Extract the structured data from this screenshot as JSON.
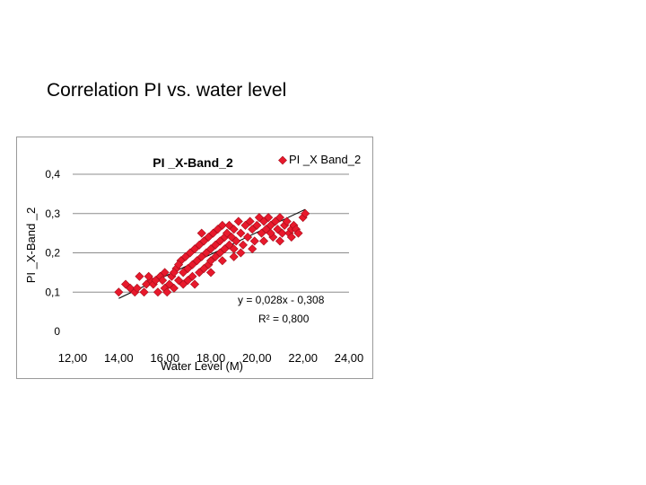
{
  "slide": {
    "title": "Correlation PI vs. water level"
  },
  "chart_data": {
    "type": "scatter",
    "title": "PI _X-Band_2",
    "xlabel": "Water Level (M)",
    "ylabel": "PI _X-Band _2",
    "xlim": [
      12,
      24
    ],
    "ylim": [
      0,
      0.4
    ],
    "x_ticks": [
      "12,00",
      "14,00",
      "16,00",
      "18,00",
      "20,00",
      "22,00",
      "24,00"
    ],
    "y_ticks": [
      "0",
      "0,1",
      "0,2",
      "0,3",
      "0,4"
    ],
    "legend": {
      "position": "top-right",
      "entry": "PI _X Band_2"
    },
    "grid": "horizontal",
    "colors": {
      "points": "#e8192c",
      "point_edge": "#a50e1c",
      "trend": "#000000",
      "axis": "#8c8c8c"
    },
    "trendline": {
      "slope": 0.028,
      "intercept": -0.308,
      "equation": "y = 0,028x - 0,308",
      "r2": "R² = 0,800"
    },
    "series": [
      {
        "name": "PI _X Band_2",
        "points": [
          [
            14.0,
            0.1
          ],
          [
            14.5,
            0.11
          ],
          [
            14.7,
            0.1
          ],
          [
            14.9,
            0.14
          ],
          [
            15.1,
            0.1
          ],
          [
            15.2,
            0.12
          ],
          [
            15.4,
            0.13
          ],
          [
            15.5,
            0.12
          ],
          [
            15.7,
            0.1
          ],
          [
            15.8,
            0.14
          ],
          [
            15.9,
            0.13
          ],
          [
            16.0,
            0.11
          ],
          [
            16.0,
            0.15
          ],
          [
            16.2,
            0.12
          ],
          [
            16.3,
            0.14
          ],
          [
            16.4,
            0.11
          ],
          [
            16.5,
            0.16
          ],
          [
            16.6,
            0.13
          ],
          [
            16.7,
            0.18
          ],
          [
            16.8,
            0.15
          ],
          [
            16.8,
            0.12
          ],
          [
            16.9,
            0.19
          ],
          [
            17.0,
            0.16
          ],
          [
            17.0,
            0.13
          ],
          [
            17.1,
            0.2
          ],
          [
            17.2,
            0.17
          ],
          [
            17.2,
            0.14
          ],
          [
            17.3,
            0.21
          ],
          [
            17.4,
            0.18
          ],
          [
            17.5,
            0.15
          ],
          [
            17.5,
            0.22
          ],
          [
            17.6,
            0.19
          ],
          [
            17.7,
            0.16
          ],
          [
            17.7,
            0.23
          ],
          [
            17.8,
            0.2
          ],
          [
            17.9,
            0.17
          ],
          [
            17.9,
            0.24
          ],
          [
            18.0,
            0.21
          ],
          [
            18.0,
            0.18
          ],
          [
            18.1,
            0.25
          ],
          [
            18.2,
            0.22
          ],
          [
            18.2,
            0.19
          ],
          [
            18.3,
            0.26
          ],
          [
            18.4,
            0.23
          ],
          [
            18.4,
            0.2
          ],
          [
            18.5,
            0.27
          ],
          [
            18.6,
            0.24
          ],
          [
            18.6,
            0.21
          ],
          [
            18.7,
            0.25
          ],
          [
            18.8,
            0.22
          ],
          [
            18.8,
            0.27
          ],
          [
            18.9,
            0.24
          ],
          [
            19.0,
            0.21
          ],
          [
            19.0,
            0.26
          ],
          [
            19.1,
            0.23
          ],
          [
            19.2,
            0.28
          ],
          [
            19.3,
            0.25
          ],
          [
            19.4,
            0.22
          ],
          [
            19.5,
            0.27
          ],
          [
            19.6,
            0.24
          ],
          [
            19.7,
            0.28
          ],
          [
            19.8,
            0.26
          ],
          [
            19.9,
            0.23
          ],
          [
            20.0,
            0.27
          ],
          [
            20.1,
            0.29
          ],
          [
            20.2,
            0.25
          ],
          [
            20.3,
            0.28
          ],
          [
            20.4,
            0.26
          ],
          [
            20.5,
            0.29
          ],
          [
            20.6,
            0.27
          ],
          [
            20.7,
            0.24
          ],
          [
            20.8,
            0.28
          ],
          [
            20.9,
            0.26
          ],
          [
            21.0,
            0.29
          ],
          [
            21.1,
            0.25
          ],
          [
            21.2,
            0.27
          ],
          [
            21.3,
            0.28
          ],
          [
            21.4,
            0.25
          ],
          [
            21.5,
            0.26
          ],
          [
            21.6,
            0.27
          ],
          [
            21.7,
            0.26
          ],
          [
            21.8,
            0.25
          ],
          [
            22.0,
            0.29
          ],
          [
            22.1,
            0.3
          ],
          [
            14.3,
            0.12
          ],
          [
            14.8,
            0.11
          ],
          [
            15.3,
            0.14
          ],
          [
            15.6,
            0.13
          ],
          [
            16.1,
            0.1
          ],
          [
            16.4,
            0.15
          ],
          [
            16.6,
            0.17
          ],
          [
            17.3,
            0.12
          ],
          [
            17.6,
            0.25
          ],
          [
            18.0,
            0.15
          ],
          [
            18.5,
            0.18
          ],
          [
            19.0,
            0.19
          ],
          [
            19.3,
            0.2
          ],
          [
            19.8,
            0.21
          ],
          [
            20.3,
            0.23
          ],
          [
            20.6,
            0.25
          ],
          [
            21.0,
            0.23
          ],
          [
            21.5,
            0.24
          ]
        ]
      }
    ]
  }
}
